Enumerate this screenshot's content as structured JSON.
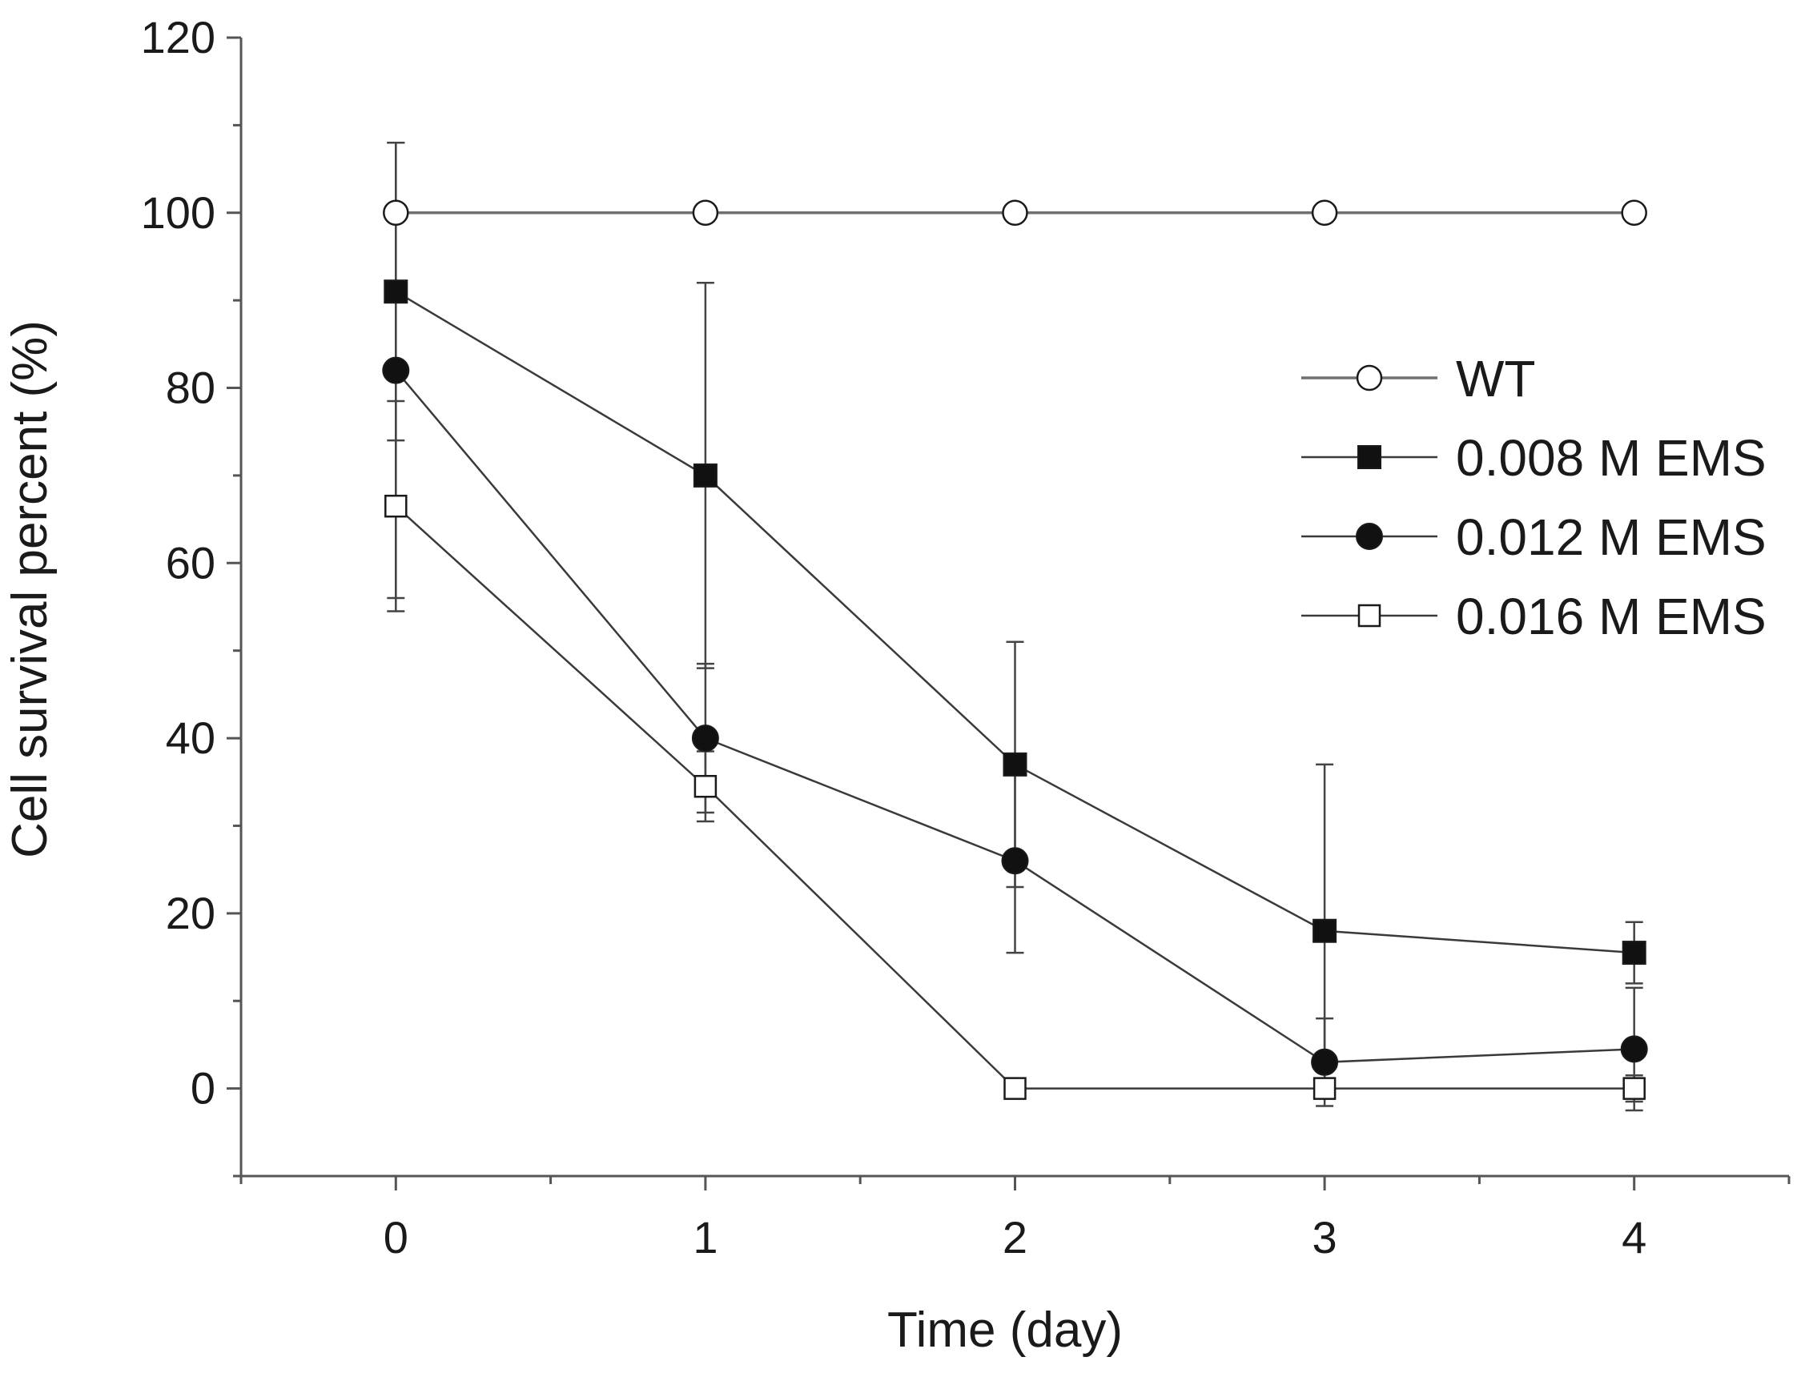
{
  "chart_data": {
    "type": "line",
    "title": "",
    "xlabel": "Time (day)",
    "ylabel": "Cell survival percent  (%)",
    "xlim": [
      -0.5,
      4.5
    ],
    "ylim": [
      -10,
      120
    ],
    "x": [
      0,
      1,
      2,
      3,
      4
    ],
    "x_ticks": [
      0,
      1,
      2,
      3,
      4
    ],
    "x_tick_labels": [
      "0",
      "1",
      "2",
      "3",
      "4"
    ],
    "y_ticks": [
      0,
      20,
      40,
      60,
      80,
      100,
      120
    ],
    "y_tick_labels": [
      "0",
      "20",
      "40",
      "60",
      "80",
      "100",
      "120"
    ],
    "grid": false,
    "legend_position": "right",
    "series": [
      {
        "name": "WT",
        "marker": "open-circle",
        "line_color": "#707070",
        "values": [
          100,
          100,
          100,
          100,
          100
        ],
        "errors": [
          null,
          null,
          null,
          null,
          null
        ]
      },
      {
        "name": "0.008 M EMS",
        "marker": "filled-square",
        "line_color": "#3a3a3a",
        "values": [
          91,
          70,
          37,
          18,
          15.5
        ],
        "errors": [
          17,
          22,
          14,
          19,
          3.5
        ]
      },
      {
        "name": "0.012 M EMS",
        "marker": "filled-circle",
        "line_color": "#3a3a3a",
        "values": [
          82,
          40,
          26,
          3,
          4.5
        ],
        "errors": [
          26,
          8.5,
          10.5,
          5,
          7
        ]
      },
      {
        "name": "0.016 M EMS",
        "marker": "open-square",
        "line_color": "#3a3a3a",
        "values": [
          66.5,
          34.5,
          0,
          0,
          0
        ],
        "errors": [
          12,
          4,
          0,
          0.5,
          1.5
        ]
      }
    ]
  }
}
